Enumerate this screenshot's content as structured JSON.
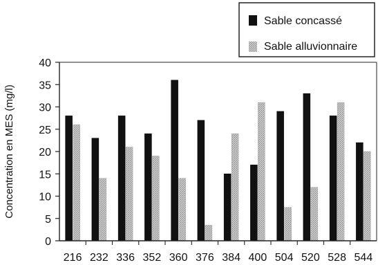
{
  "chart_data": {
    "type": "bar",
    "categories": [
      "216",
      "232",
      "336",
      "352",
      "360",
      "376",
      "384",
      "400",
      "504",
      "520",
      "528",
      "544"
    ],
    "series": [
      {
        "name": "Sable concassé",
        "color": "#111111",
        "values": [
          28,
          23,
          28,
          24,
          36,
          27,
          15,
          17,
          29,
          33,
          28,
          22
        ]
      },
      {
        "name": "Sable alluvionnaire",
        "color": "#b8b8b8",
        "values": [
          26,
          14,
          21,
          19,
          14,
          3.5,
          24,
          31,
          7.5,
          12,
          31,
          20
        ]
      }
    ],
    "title": "",
    "xlabel": "",
    "ylabel": "Concentration en MES (mg/l)",
    "ylim": [
      0,
      40
    ],
    "yticks": [
      "0",
      "5",
      "10",
      "15",
      "20",
      "25",
      "30",
      "35",
      "40"
    ],
    "grid": false,
    "legend_position": "top-right"
  }
}
